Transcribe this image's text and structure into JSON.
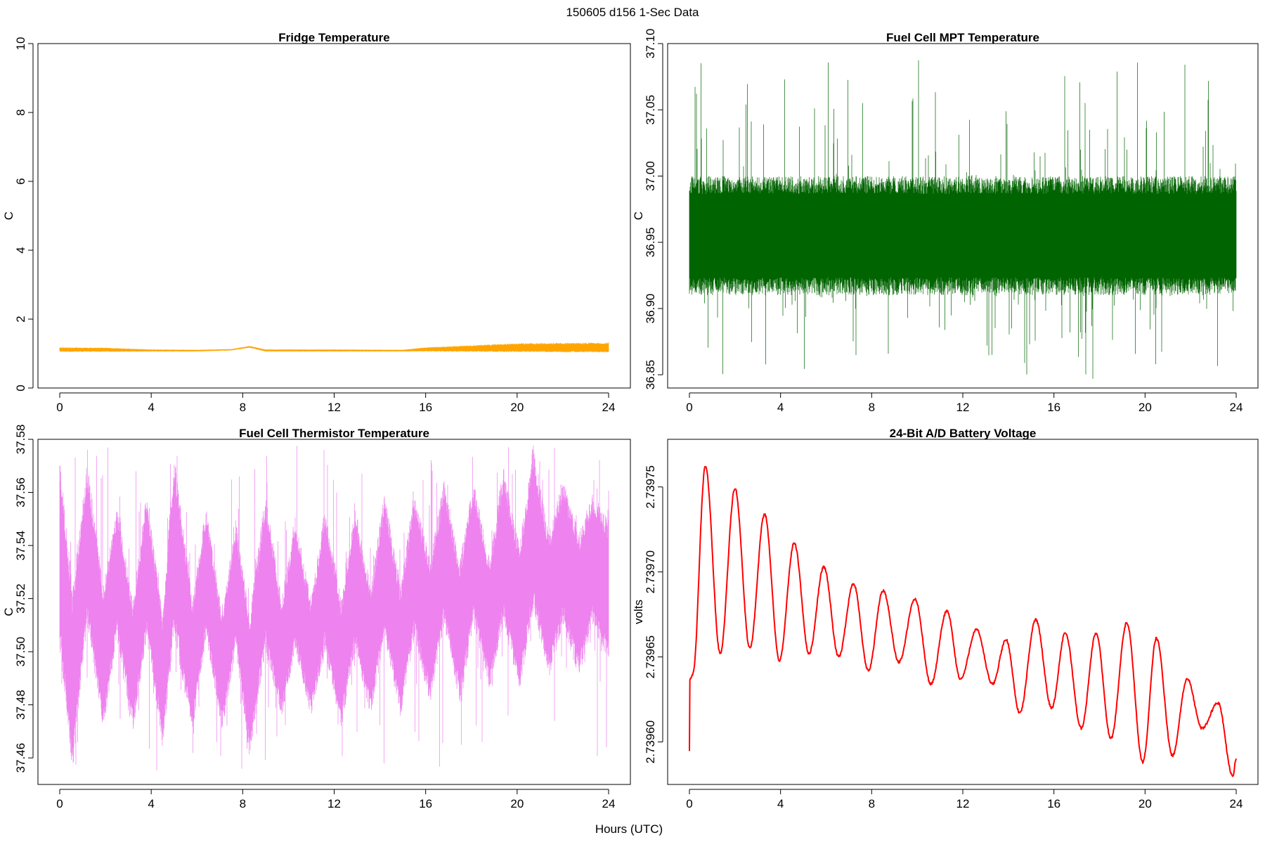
{
  "page": {
    "title": "150605   d156   1-Sec Data",
    "xlabel": "Hours (UTC)"
  },
  "chart_data": [
    {
      "type": "line",
      "title": "Fridge Temperature",
      "ylabel": "C",
      "xlabel": "Hours (UTC)",
      "color": "#FFA500",
      "xlim": [
        0,
        24
      ],
      "ylim": [
        0,
        10
      ],
      "xticks": [
        0,
        4,
        8,
        12,
        16,
        20,
        24
      ],
      "yticks": [
        0,
        2,
        4,
        6,
        8,
        10
      ],
      "ytick_labels": [
        "0",
        "2",
        "4",
        "6",
        "8",
        "10"
      ],
      "grid": false,
      "series": [
        {
          "name": "fridge",
          "envelope": [
            {
              "x": 0,
              "lo": 1.05,
              "hi": 1.18
            },
            {
              "x": 2,
              "lo": 1.05,
              "hi": 1.17
            },
            {
              "x": 4,
              "lo": 1.06,
              "hi": 1.12
            },
            {
              "x": 6,
              "lo": 1.06,
              "hi": 1.11
            },
            {
              "x": 7.5,
              "lo": 1.09,
              "hi": 1.13
            },
            {
              "x": 8.3,
              "lo": 1.17,
              "hi": 1.22
            },
            {
              "x": 9,
              "lo": 1.06,
              "hi": 1.12
            },
            {
              "x": 12,
              "lo": 1.06,
              "hi": 1.12
            },
            {
              "x": 15,
              "lo": 1.06,
              "hi": 1.11
            },
            {
              "x": 16,
              "lo": 1.06,
              "hi": 1.18
            },
            {
              "x": 18,
              "lo": 1.05,
              "hi": 1.24
            },
            {
              "x": 20,
              "lo": 1.04,
              "hi": 1.3
            },
            {
              "x": 24,
              "lo": 1.03,
              "hi": 1.32
            }
          ]
        }
      ]
    },
    {
      "type": "line",
      "title": "Fuel Cell MPT Temperature",
      "ylabel": "C",
      "xlabel": "Hours (UTC)",
      "color": "#006400",
      "xlim": [
        0,
        24
      ],
      "ylim": [
        36.84,
        37.1
      ],
      "xticks": [
        0,
        4,
        8,
        12,
        16,
        20,
        24
      ],
      "yticks": [
        36.85,
        36.9,
        36.95,
        37.0,
        37.05,
        37.1
      ],
      "ytick_labels": [
        "36.85",
        "36.90",
        "36.95",
        "37.00",
        "37.05",
        "37.10"
      ],
      "grid": false,
      "series": [
        {
          "name": "mpt",
          "envelope": [
            {
              "x": 0,
              "lo": 36.91,
              "hi": 37.0
            },
            {
              "x": 12,
              "lo": 36.91,
              "hi": 37.0
            },
            {
              "x": 24,
              "lo": 36.91,
              "hi": 37.0
            }
          ],
          "spike_hi": 37.09,
          "spike_lo": 36.845
        }
      ]
    },
    {
      "type": "line",
      "title": "Fuel Cell Thermistor Temperature",
      "ylabel": "C",
      "xlabel": "Hours (UTC)",
      "color": "#EE82EE",
      "xlim": [
        0,
        24
      ],
      "ylim": [
        37.45,
        37.58
      ],
      "xticks": [
        0,
        4,
        8,
        12,
        16,
        20,
        24
      ],
      "yticks": [
        37.46,
        37.48,
        37.5,
        37.52,
        37.54,
        37.56,
        37.58
      ],
      "ytick_labels": [
        "37.46",
        "37.48",
        "37.50",
        "37.52",
        "37.54",
        "37.56",
        "37.58"
      ],
      "grid": false,
      "series": [
        {
          "name": "thermistor",
          "envelope": [
            {
              "x": 0,
              "lo": 37.5,
              "hi": 37.575
            },
            {
              "x": 0.55,
              "lo": 37.455,
              "hi": 37.525
            },
            {
              "x": 1.2,
              "lo": 37.51,
              "hi": 37.572
            },
            {
              "x": 1.9,
              "lo": 37.47,
              "hi": 37.525
            },
            {
              "x": 2.5,
              "lo": 37.505,
              "hi": 37.555
            },
            {
              "x": 3.2,
              "lo": 37.47,
              "hi": 37.52
            },
            {
              "x": 3.8,
              "lo": 37.505,
              "hi": 37.56
            },
            {
              "x": 4.5,
              "lo": 37.465,
              "hi": 37.515
            },
            {
              "x": 5.0,
              "lo": 37.505,
              "hi": 37.575
            },
            {
              "x": 5.8,
              "lo": 37.47,
              "hi": 37.52
            },
            {
              "x": 6.4,
              "lo": 37.505,
              "hi": 37.555
            },
            {
              "x": 7.1,
              "lo": 37.47,
              "hi": 37.515
            },
            {
              "x": 7.7,
              "lo": 37.5,
              "hi": 37.55
            },
            {
              "x": 8.3,
              "lo": 37.46,
              "hi": 37.515
            },
            {
              "x": 9.0,
              "lo": 37.5,
              "hi": 37.56
            },
            {
              "x": 9.7,
              "lo": 37.475,
              "hi": 37.52
            },
            {
              "x": 10.3,
              "lo": 37.5,
              "hi": 37.55
            },
            {
              "x": 11.0,
              "lo": 37.475,
              "hi": 37.52
            },
            {
              "x": 11.6,
              "lo": 37.5,
              "hi": 37.555
            },
            {
              "x": 12.3,
              "lo": 37.47,
              "hi": 37.52
            },
            {
              "x": 12.9,
              "lo": 37.5,
              "hi": 37.555
            },
            {
              "x": 13.6,
              "lo": 37.475,
              "hi": 37.525
            },
            {
              "x": 14.2,
              "lo": 37.505,
              "hi": 37.56
            },
            {
              "x": 14.9,
              "lo": 37.475,
              "hi": 37.525
            },
            {
              "x": 15.5,
              "lo": 37.505,
              "hi": 37.56
            },
            {
              "x": 16.2,
              "lo": 37.48,
              "hi": 37.535
            },
            {
              "x": 16.8,
              "lo": 37.51,
              "hi": 37.565
            },
            {
              "x": 17.5,
              "lo": 37.48,
              "hi": 37.535
            },
            {
              "x": 18.1,
              "lo": 37.51,
              "hi": 37.565
            },
            {
              "x": 18.8,
              "lo": 37.485,
              "hi": 37.535
            },
            {
              "x": 19.4,
              "lo": 37.51,
              "hi": 37.57
            },
            {
              "x": 20.1,
              "lo": 37.485,
              "hi": 37.54
            },
            {
              "x": 20.7,
              "lo": 37.515,
              "hi": 37.578
            },
            {
              "x": 21.4,
              "lo": 37.49,
              "hi": 37.545
            },
            {
              "x": 22.0,
              "lo": 37.51,
              "hi": 37.565
            },
            {
              "x": 22.7,
              "lo": 37.49,
              "hi": 37.545
            },
            {
              "x": 23.3,
              "lo": 37.51,
              "hi": 37.56
            },
            {
              "x": 24,
              "lo": 37.495,
              "hi": 37.55
            }
          ],
          "spike_hi": 37.578,
          "spike_lo": 37.455
        }
      ]
    },
    {
      "type": "line",
      "title": "24-Bit A/D Battery Voltage",
      "ylabel": "volts",
      "xlabel": "Hours (UTC)",
      "color": "#FF0000",
      "xlim": [
        0,
        24
      ],
      "ylim": [
        2.739575,
        2.739778
      ],
      "xticks": [
        0,
        4,
        8,
        12,
        16,
        20,
        24
      ],
      "yticks": [
        2.7396,
        2.73965,
        2.7397,
        2.73975
      ],
      "ytick_labels": [
        "2.73960",
        "2.73965",
        "2.73970",
        "2.73975"
      ],
      "grid": false,
      "series": [
        {
          "name": "battery",
          "points": [
            {
              "x": 0.0,
              "y": 2.739595
            },
            {
              "x": 0.02,
              "y": 2.739637
            },
            {
              "x": 0.15,
              "y": 2.73964
            },
            {
              "x": 0.7,
              "y": 2.739762
            },
            {
              "x": 1.35,
              "y": 2.739652
            },
            {
              "x": 2.0,
              "y": 2.739749
            },
            {
              "x": 2.65,
              "y": 2.739655
            },
            {
              "x": 3.3,
              "y": 2.739734
            },
            {
              "x": 3.95,
              "y": 2.739648
            },
            {
              "x": 4.6,
              "y": 2.739717
            },
            {
              "x": 5.25,
              "y": 2.739652
            },
            {
              "x": 5.9,
              "y": 2.739703
            },
            {
              "x": 6.55,
              "y": 2.73965
            },
            {
              "x": 7.2,
              "y": 2.739693
            },
            {
              "x": 7.85,
              "y": 2.739642
            },
            {
              "x": 8.5,
              "y": 2.739689
            },
            {
              "x": 9.2,
              "y": 2.739647
            },
            {
              "x": 9.9,
              "y": 2.739684
            },
            {
              "x": 10.6,
              "y": 2.739634
            },
            {
              "x": 11.3,
              "y": 2.739677
            },
            {
              "x": 11.9,
              "y": 2.739637
            },
            {
              "x": 12.6,
              "y": 2.739666
            },
            {
              "x": 13.3,
              "y": 2.739634
            },
            {
              "x": 13.9,
              "y": 2.73966
            },
            {
              "x": 14.5,
              "y": 2.739617
            },
            {
              "x": 15.2,
              "y": 2.739672
            },
            {
              "x": 15.9,
              "y": 2.73962
            },
            {
              "x": 16.5,
              "y": 2.739664
            },
            {
              "x": 17.2,
              "y": 2.739608
            },
            {
              "x": 17.85,
              "y": 2.739664
            },
            {
              "x": 18.5,
              "y": 2.739602
            },
            {
              "x": 19.2,
              "y": 2.73967
            },
            {
              "x": 19.9,
              "y": 2.739588
            },
            {
              "x": 20.5,
              "y": 2.739661
            },
            {
              "x": 21.2,
              "y": 2.739592
            },
            {
              "x": 21.85,
              "y": 2.739637
            },
            {
              "x": 22.5,
              "y": 2.739608
            },
            {
              "x": 23.2,
              "y": 2.739623
            },
            {
              "x": 23.85,
              "y": 2.73958
            },
            {
              "x": 24.0,
              "y": 2.73959
            }
          ]
        }
      ]
    }
  ]
}
